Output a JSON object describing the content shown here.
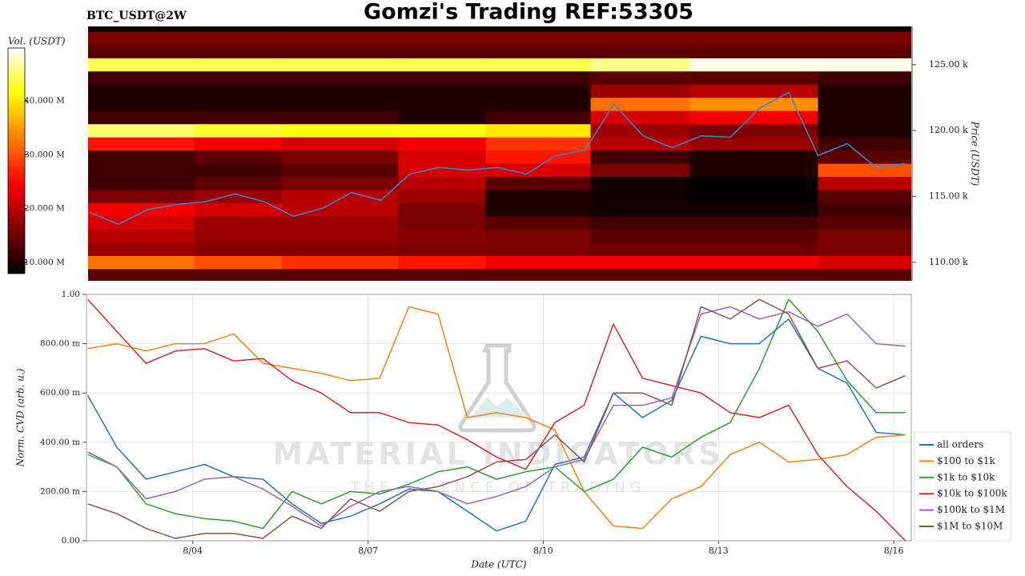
{
  "chart_data": [
    {
      "type": "heatmap",
      "title": "Gomzi's Trading REF:53305",
      "subtitle": "BTC_USDT@2W",
      "ylabel": "Price (USDT)",
      "xlim": [
        2.18,
        16.3
      ],
      "ylim": [
        108600,
        127900
      ],
      "yticks": [
        {
          "value": 110000,
          "label": "110.00 k"
        },
        {
          "value": 115000,
          "label": "115.00 k"
        },
        {
          "value": 120000,
          "label": "120.00 k"
        },
        {
          "value": 125000,
          "label": "125.00 k"
        }
      ],
      "colormap": "hot",
      "colorbar": {
        "label": "Vol. (USDT)",
        "lim": [
          7.9,
          49.8
        ],
        "ticks": [
          {
            "value": 10,
            "label": "10.000 M"
          },
          {
            "value": 20,
            "label": "20.000 M"
          },
          {
            "value": 30,
            "label": "30.000 M"
          },
          {
            "value": 40,
            "label": "40.000 M"
          }
        ]
      },
      "xbins": [
        2.18,
        4,
        5.5,
        7.5,
        9,
        10.8,
        12.5,
        14.7,
        16.3
      ],
      "ybins": [
        108500,
        109500,
        110500,
        111500,
        112500,
        113500,
        114500,
        115500,
        116500,
        117500,
        118500,
        119500,
        120500,
        121500,
        122500,
        123500,
        124500,
        125500,
        126500,
        127500
      ],
      "z": [
        [
          14,
          14,
          14,
          14,
          14,
          14,
          14,
          14
        ],
        [
          32,
          30,
          28,
          26,
          24,
          24,
          24,
          22
        ],
        [
          18,
          17,
          17,
          16,
          16,
          15,
          15,
          16
        ],
        [
          20,
          18,
          18,
          17,
          16,
          14,
          14,
          16
        ],
        [
          22,
          18,
          18,
          16,
          14,
          12,
          12,
          14
        ],
        [
          24,
          22,
          20,
          16,
          10,
          9,
          9,
          12
        ],
        [
          16,
          18,
          20,
          18,
          10,
          9,
          8,
          14
        ],
        [
          12,
          14,
          16,
          20,
          14,
          9,
          8,
          20
        ],
        [
          12,
          12,
          14,
          22,
          22,
          16,
          10,
          30
        ],
        [
          12,
          14,
          16,
          22,
          26,
          12,
          10,
          14
        ],
        [
          26,
          24,
          22,
          24,
          28,
          20,
          18,
          12
        ],
        [
          45,
          43,
          42,
          42,
          40,
          18,
          16,
          10
        ],
        [
          12,
          12,
          12,
          10,
          12,
          22,
          24,
          10
        ],
        [
          10,
          10,
          10,
          10,
          10,
          32,
          34,
          10
        ],
        [
          10,
          10,
          10,
          10,
          10,
          18,
          20,
          10
        ],
        [
          12,
          12,
          12,
          12,
          12,
          14,
          14,
          12
        ],
        [
          44,
          44,
          44,
          44,
          44,
          46,
          49,
          49
        ],
        [
          14,
          14,
          14,
          14,
          14,
          14,
          14,
          14
        ],
        [
          16,
          16,
          16,
          16,
          16,
          16,
          16,
          16
        ]
      ],
      "x": [
        2.2,
        2.7,
        3.2,
        3.7,
        4.2,
        4.7,
        5.2,
        5.7,
        6.2,
        6.7,
        7.2,
        7.7,
        8.2,
        8.7,
        9.2,
        9.7,
        10.2,
        10.7,
        11.2,
        11.7,
        12.2,
        12.7,
        13.2,
        13.7,
        14.2,
        14.7,
        15.2,
        15.7,
        16.2
      ],
      "series": [
        {
          "color": "#3a85c8",
          "values": [
            113800,
            112900,
            114000,
            114400,
            114600,
            115200,
            114600,
            113500,
            114100,
            115300,
            114700,
            116700,
            117200,
            117000,
            117200,
            116700,
            118100,
            118500,
            122000,
            119600,
            118700,
            119600,
            119500,
            121700,
            122900,
            118100,
            119000,
            117200,
            117500
          ]
        }
      ]
    },
    {
      "type": "line",
      "xlabel": "Date (UTC)",
      "ylabel": "Norm. CVD (arb. u.)",
      "xlim": [
        2.18,
        16.3
      ],
      "xticks": [
        {
          "value": 4,
          "label": "8/04"
        },
        {
          "value": 7,
          "label": "8/07"
        },
        {
          "value": 10,
          "label": "8/10"
        },
        {
          "value": 13,
          "label": "8/13"
        },
        {
          "value": 16,
          "label": "8/16"
        }
      ],
      "ylim": [
        0,
        1
      ],
      "yticks": [
        {
          "value": 0,
          "label": "0.00"
        },
        {
          "value": 0.2,
          "label": "200.00 m"
        },
        {
          "value": 0.4,
          "label": "400.00 m"
        },
        {
          "value": 0.6,
          "label": "600.00 m"
        },
        {
          "value": 0.8,
          "label": "800.00 m"
        },
        {
          "value": 1,
          "label": "1.00"
        }
      ],
      "grid": true,
      "legend": "lower right",
      "annotations": [
        "MATERIAL INDICATORS",
        "THE SCIENCE OF TRADING"
      ],
      "x": [
        2.2,
        2.7,
        3.2,
        3.7,
        4.2,
        4.7,
        5.2,
        5.7,
        6.2,
        6.7,
        7.2,
        7.7,
        8.2,
        8.7,
        9.2,
        9.7,
        10.2,
        10.7,
        11.2,
        11.7,
        12.2,
        12.7,
        13.2,
        13.7,
        14.2,
        14.7,
        15.2,
        15.7,
        16.2
      ],
      "series": [
        {
          "name": "all orders",
          "color": "#1f77b4",
          "values": [
            0.59,
            0.38,
            0.25,
            0.28,
            0.31,
            0.26,
            0.25,
            0.15,
            0.07,
            0.1,
            0.15,
            0.21,
            0.2,
            0.12,
            0.04,
            0.08,
            0.31,
            0.34,
            0.6,
            0.5,
            0.57,
            0.83,
            0.8,
            0.8,
            0.9,
            0.7,
            0.64,
            0.44,
            0.43
          ]
        },
        {
          "name": "$100 to $1k",
          "color": "#ff7f0e",
          "values": [
            0.78,
            0.8,
            0.77,
            0.8,
            0.8,
            0.84,
            0.72,
            0.7,
            0.68,
            0.65,
            0.66,
            0.95,
            0.92,
            0.5,
            0.52,
            0.5,
            0.45,
            0.2,
            0.06,
            0.05,
            0.17,
            0.22,
            0.35,
            0.4,
            0.32,
            0.33,
            0.35,
            0.42,
            0.43
          ]
        },
        {
          "name": "$1k to $10k",
          "color": "#2ca02c",
          "values": [
            0.36,
            0.3,
            0.15,
            0.11,
            0.09,
            0.08,
            0.05,
            0.2,
            0.15,
            0.2,
            0.19,
            0.23,
            0.28,
            0.3,
            0.25,
            0.28,
            0.3,
            0.2,
            0.25,
            0.38,
            0.34,
            0.42,
            0.48,
            0.7,
            0.98,
            0.85,
            0.65,
            0.52,
            0.52
          ]
        },
        {
          "name": "$10k to $100k",
          "color": "#d62728",
          "values": [
            0.98,
            0.85,
            0.72,
            0.77,
            0.78,
            0.73,
            0.74,
            0.65,
            0.6,
            0.52,
            0.52,
            0.48,
            0.47,
            0.41,
            0.34,
            0.29,
            0.48,
            0.55,
            0.88,
            0.66,
            0.63,
            0.6,
            0.52,
            0.5,
            0.55,
            0.35,
            0.22,
            0.12,
            0
          ]
        },
        {
          "name": "$100k to $1M",
          "color": "#9467bd",
          "values": [
            0.35,
            0.3,
            0.17,
            0.2,
            0.25,
            0.26,
            0.21,
            0.14,
            0.06,
            0.14,
            0.2,
            0.22,
            0.2,
            0.15,
            0.18,
            0.22,
            0.3,
            0.33,
            0.55,
            0.55,
            0.58,
            0.92,
            0.95,
            0.9,
            0.93,
            0.87,
            0.92,
            0.8,
            0.79
          ]
        },
        {
          "name": "$1M to $10M",
          "color": "#8c564b",
          "values": [
            0.15,
            0.11,
            0.05,
            0.01,
            0.03,
            0.03,
            0.01,
            0.1,
            0.05,
            0.17,
            0.12,
            0.2,
            0.22,
            0.26,
            0.32,
            0.33,
            0.43,
            0.32,
            0.6,
            0.6,
            0.55,
            0.95,
            0.9,
            0.98,
            0.92,
            0.7,
            0.73,
            0.62,
            0.67
          ]
        }
      ]
    }
  ]
}
